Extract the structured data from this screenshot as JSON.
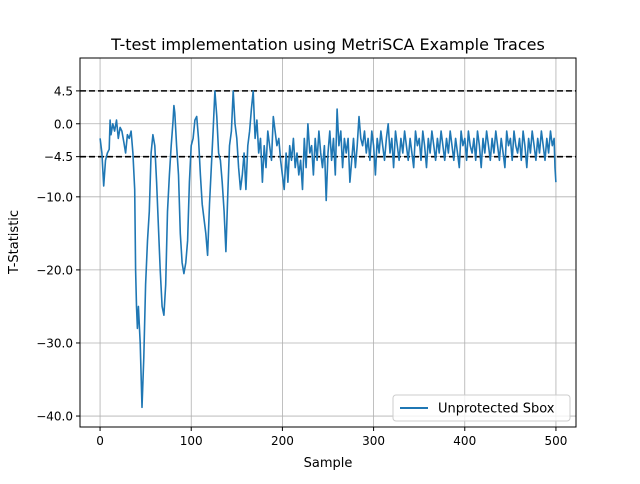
{
  "chart_data": {
    "type": "line",
    "title": "T-test implementation using MetriSCA Example Traces",
    "xlabel": "Sample",
    "ylabel": "T-Statistic",
    "xlim": [
      -22,
      522
    ],
    "ylim": [
      -41.5,
      9
    ],
    "xticks": [
      0,
      100,
      200,
      300,
      400,
      500
    ],
    "xtick_labels": [
      "0",
      "100",
      "200",
      "300",
      "400",
      "500"
    ],
    "yticks": [
      4.5,
      0,
      -4.5,
      -10,
      -20,
      -30,
      -40
    ],
    "ytick_labels": [
      "4.5",
      "0.0",
      "−4.5",
      "−10.0",
      "−20.0",
      "−30.0",
      "−40.0"
    ],
    "grid": true,
    "legend_position": "lower-right",
    "hlines": [
      {
        "y": 4.5,
        "style": "dashed",
        "color": "#000000"
      },
      {
        "y": -4.5,
        "style": "dashed",
        "color": "#000000"
      }
    ],
    "series": [
      {
        "name": "Unprotected Sbox",
        "color": "#1f77b4",
        "points": [
          [
            0,
            -2
          ],
          [
            2,
            -4
          ],
          [
            4,
            -8.5
          ],
          [
            6,
            -5
          ],
          [
            8,
            -4
          ],
          [
            10,
            -3.5
          ],
          [
            11,
            0.5
          ],
          [
            12,
            -1.5
          ],
          [
            14,
            0
          ],
          [
            16,
            -1
          ],
          [
            18,
            0.5
          ],
          [
            20,
            -2
          ],
          [
            22,
            -0.5
          ],
          [
            24,
            -1
          ],
          [
            26,
            -2.5
          ],
          [
            28,
            -4
          ],
          [
            30,
            -1.5
          ],
          [
            32,
            -2
          ],
          [
            34,
            -1
          ],
          [
            36,
            -4
          ],
          [
            38,
            -9
          ],
          [
            39,
            -20
          ],
          [
            40,
            -25
          ],
          [
            41,
            -28
          ],
          [
            42,
            -25
          ],
          [
            44,
            -30
          ],
          [
            46,
            -38.8
          ],
          [
            48,
            -32
          ],
          [
            50,
            -22
          ],
          [
            52,
            -16
          ],
          [
            54,
            -12
          ],
          [
            56,
            -4
          ],
          [
            58,
            -1.5
          ],
          [
            60,
            -3
          ],
          [
            62,
            -8
          ],
          [
            64,
            -14
          ],
          [
            66,
            -20
          ],
          [
            68,
            -25
          ],
          [
            70,
            -26.2
          ],
          [
            72,
            -22
          ],
          [
            74,
            -12
          ],
          [
            76,
            -7
          ],
          [
            78,
            -3
          ],
          [
            80,
            0.3
          ],
          [
            81,
            2.5
          ],
          [
            82,
            1.5
          ],
          [
            84,
            -3
          ],
          [
            86,
            -7
          ],
          [
            88,
            -15
          ],
          [
            90,
            -19
          ],
          [
            92,
            -20.5
          ],
          [
            94,
            -19
          ],
          [
            96,
            -16
          ],
          [
            98,
            -8
          ],
          [
            100,
            -3
          ],
          [
            102,
            -2
          ],
          [
            104,
            0.5
          ],
          [
            106,
            1
          ],
          [
            108,
            -2
          ],
          [
            110,
            -7
          ],
          [
            112,
            -11
          ],
          [
            114,
            -13
          ],
          [
            116,
            -15
          ],
          [
            118,
            -18
          ],
          [
            120,
            -11
          ],
          [
            122,
            -6
          ],
          [
            124,
            -1
          ],
          [
            126,
            4.5
          ],
          [
            128,
            1
          ],
          [
            130,
            -4
          ],
          [
            132,
            -5
          ],
          [
            134,
            -8
          ],
          [
            136,
            -12
          ],
          [
            138,
            -17.5
          ],
          [
            140,
            -10
          ],
          [
            142,
            -3
          ],
          [
            144,
            -1
          ],
          [
            146,
            4.5
          ],
          [
            148,
            0
          ],
          [
            150,
            -2
          ],
          [
            152,
            -6
          ],
          [
            154,
            -9
          ],
          [
            156,
            -7
          ],
          [
            158,
            -4
          ],
          [
            160,
            -9
          ],
          [
            162,
            -3
          ],
          [
            164,
            -1
          ],
          [
            166,
            2
          ],
          [
            168,
            4.5
          ],
          [
            170,
            -2
          ],
          [
            172,
            0.5
          ],
          [
            174,
            -4
          ],
          [
            176,
            -2
          ],
          [
            178,
            -8
          ],
          [
            180,
            -3
          ],
          [
            182,
            -6
          ],
          [
            184,
            -1
          ],
          [
            186,
            -3
          ],
          [
            188,
            -5
          ],
          [
            190,
            1
          ],
          [
            192,
            -1
          ],
          [
            194,
            -3
          ],
          [
            196,
            -2
          ],
          [
            198,
            -5
          ],
          [
            200,
            -7
          ],
          [
            202,
            -9
          ],
          [
            204,
            -4
          ],
          [
            206,
            -8
          ],
          [
            208,
            -3
          ],
          [
            210,
            -5
          ],
          [
            212,
            -2
          ],
          [
            214,
            -6
          ],
          [
            216,
            -4
          ],
          [
            218,
            -7
          ],
          [
            220,
            -5
          ],
          [
            222,
            -9
          ],
          [
            224,
            -2
          ],
          [
            226,
            -6
          ],
          [
            228,
            0
          ],
          [
            230,
            -4
          ],
          [
            232,
            -3
          ],
          [
            234,
            -7
          ],
          [
            236,
            -2
          ],
          [
            238,
            -5
          ],
          [
            240,
            -1
          ],
          [
            242,
            -4
          ],
          [
            244,
            -6
          ],
          [
            246,
            -3
          ],
          [
            248,
            -10.5
          ],
          [
            250,
            -4
          ],
          [
            252,
            -1
          ],
          [
            254,
            -5
          ],
          [
            256,
            -2
          ],
          [
            258,
            -7
          ],
          [
            260,
            2
          ],
          [
            262,
            -3
          ],
          [
            264,
            -1
          ],
          [
            266,
            -6
          ],
          [
            268,
            -2
          ],
          [
            270,
            -4
          ],
          [
            272,
            -2
          ],
          [
            274,
            -8
          ],
          [
            276,
            -5
          ],
          [
            278,
            -2
          ],
          [
            280,
            -6
          ],
          [
            282,
            -3
          ],
          [
            284,
            1
          ],
          [
            286,
            -2
          ],
          [
            288,
            -3
          ],
          [
            290,
            -1
          ],
          [
            292,
            -4
          ],
          [
            294,
            -2
          ],
          [
            296,
            -5
          ],
          [
            298,
            -1
          ],
          [
            300,
            -3
          ],
          [
            302,
            -7
          ],
          [
            304,
            -2
          ],
          [
            306,
            -4
          ],
          [
            308,
            -1
          ],
          [
            310,
            -3
          ],
          [
            312,
            -5
          ],
          [
            314,
            -2
          ],
          [
            316,
            0
          ],
          [
            318,
            -4
          ],
          [
            320,
            -2
          ],
          [
            322,
            -6
          ],
          [
            324,
            -1
          ],
          [
            326,
            -3
          ],
          [
            328,
            -5
          ],
          [
            330,
            -2
          ],
          [
            332,
            -4
          ],
          [
            334,
            -1
          ],
          [
            336,
            -3
          ],
          [
            338,
            -5
          ],
          [
            340,
            -2
          ],
          [
            342,
            -4
          ],
          [
            344,
            -6
          ],
          [
            346,
            -1
          ],
          [
            348,
            -3
          ],
          [
            350,
            -2
          ],
          [
            352,
            -5
          ],
          [
            354,
            -1
          ],
          [
            356,
            -3
          ],
          [
            358,
            -6
          ],
          [
            360,
            -2
          ],
          [
            362,
            -4
          ],
          [
            364,
            -1
          ],
          [
            366,
            -3
          ],
          [
            368,
            -5
          ],
          [
            370,
            -2
          ],
          [
            372,
            -4
          ],
          [
            374,
            -1
          ],
          [
            376,
            -3
          ],
          [
            378,
            -5
          ],
          [
            380,
            -2
          ],
          [
            382,
            -4
          ],
          [
            384,
            -1
          ],
          [
            386,
            -3
          ],
          [
            388,
            -5
          ],
          [
            390,
            -2
          ],
          [
            392,
            -4
          ],
          [
            394,
            -6
          ],
          [
            396,
            -1
          ],
          [
            398,
            -3
          ],
          [
            400,
            -2
          ],
          [
            402,
            -5
          ],
          [
            404,
            -1
          ],
          [
            406,
            -3
          ],
          [
            408,
            -4
          ],
          [
            410,
            -2
          ],
          [
            412,
            -5
          ],
          [
            414,
            -1
          ],
          [
            416,
            -3
          ],
          [
            418,
            -6
          ],
          [
            420,
            -2
          ],
          [
            422,
            -4
          ],
          [
            424,
            -1
          ],
          [
            426,
            -3
          ],
          [
            428,
            -5
          ],
          [
            430,
            -2
          ],
          [
            432,
            -4
          ],
          [
            434,
            -1
          ],
          [
            436,
            -3
          ],
          [
            438,
            -5
          ],
          [
            440,
            -2
          ],
          [
            442,
            -4
          ],
          [
            444,
            -6
          ],
          [
            446,
            -1
          ],
          [
            448,
            -3
          ],
          [
            450,
            -2
          ],
          [
            452,
            -5
          ],
          [
            454,
            -1
          ],
          [
            456,
            -3
          ],
          [
            458,
            -4
          ],
          [
            460,
            -2
          ],
          [
            462,
            -5
          ],
          [
            464,
            -1
          ],
          [
            466,
            -3
          ],
          [
            468,
            -6
          ],
          [
            470,
            -2
          ],
          [
            472,
            -4
          ],
          [
            474,
            -1
          ],
          [
            476,
            -3
          ],
          [
            478,
            -5
          ],
          [
            480,
            -2
          ],
          [
            482,
            -4
          ],
          [
            484,
            -1
          ],
          [
            486,
            -3
          ],
          [
            488,
            -5
          ],
          [
            490,
            -2
          ],
          [
            492,
            -4
          ],
          [
            494,
            -1
          ],
          [
            496,
            -3
          ],
          [
            498,
            -2
          ],
          [
            499,
            -6
          ],
          [
            500,
            -8
          ]
        ]
      }
    ]
  }
}
